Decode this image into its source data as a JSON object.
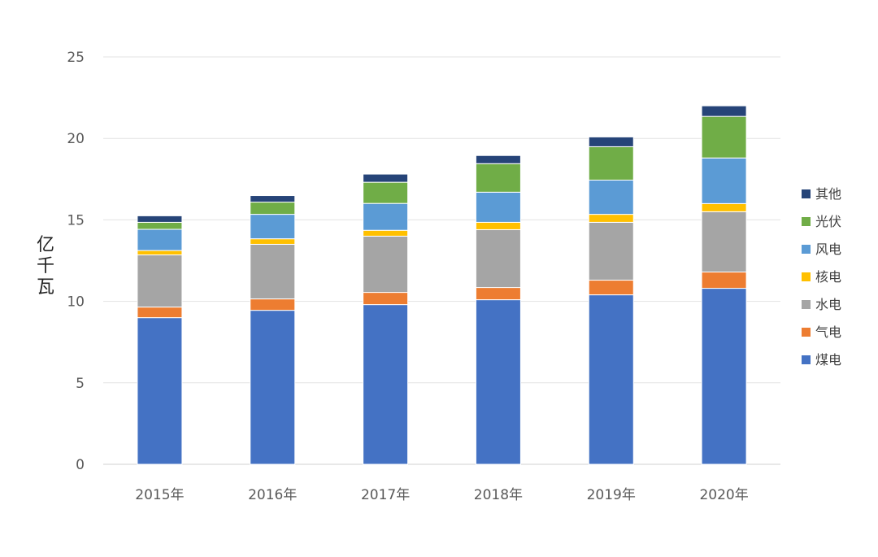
{
  "chart_data": {
    "type": "bar",
    "stacked": true,
    "categories": [
      "2015年",
      "2016年",
      "2017年",
      "2018年",
      "2019年",
      "2020年"
    ],
    "ylabel": "亿千瓦",
    "ylim": [
      0,
      25
    ],
    "yticks": [
      0,
      5,
      10,
      15,
      20,
      25
    ],
    "grid": true,
    "legend_position": "right",
    "series": [
      {
        "name": "煤电",
        "color": "#4472C4",
        "values": [
          9.0,
          9.45,
          9.8,
          10.1,
          10.4,
          10.8
        ]
      },
      {
        "name": "气电",
        "color": "#ED7D31",
        "values": [
          0.65,
          0.7,
          0.75,
          0.75,
          0.9,
          1.0
        ]
      },
      {
        "name": "水电",
        "color": "#A5A5A5",
        "values": [
          3.2,
          3.35,
          3.45,
          3.55,
          3.55,
          3.7
        ]
      },
      {
        "name": "核电",
        "color": "#FFC000",
        "values": [
          0.27,
          0.34,
          0.36,
          0.45,
          0.49,
          0.5
        ]
      },
      {
        "name": "风电",
        "color": "#5B9BD5",
        "values": [
          1.3,
          1.5,
          1.65,
          1.85,
          2.1,
          2.8
        ]
      },
      {
        "name": "光伏",
        "color": "#70AD47",
        "values": [
          0.43,
          0.75,
          1.3,
          1.75,
          2.05,
          2.55
        ]
      },
      {
        "name": "其他",
        "color": "#264478",
        "values": [
          0.4,
          0.4,
          0.5,
          0.5,
          0.6,
          0.65
        ]
      }
    ]
  }
}
